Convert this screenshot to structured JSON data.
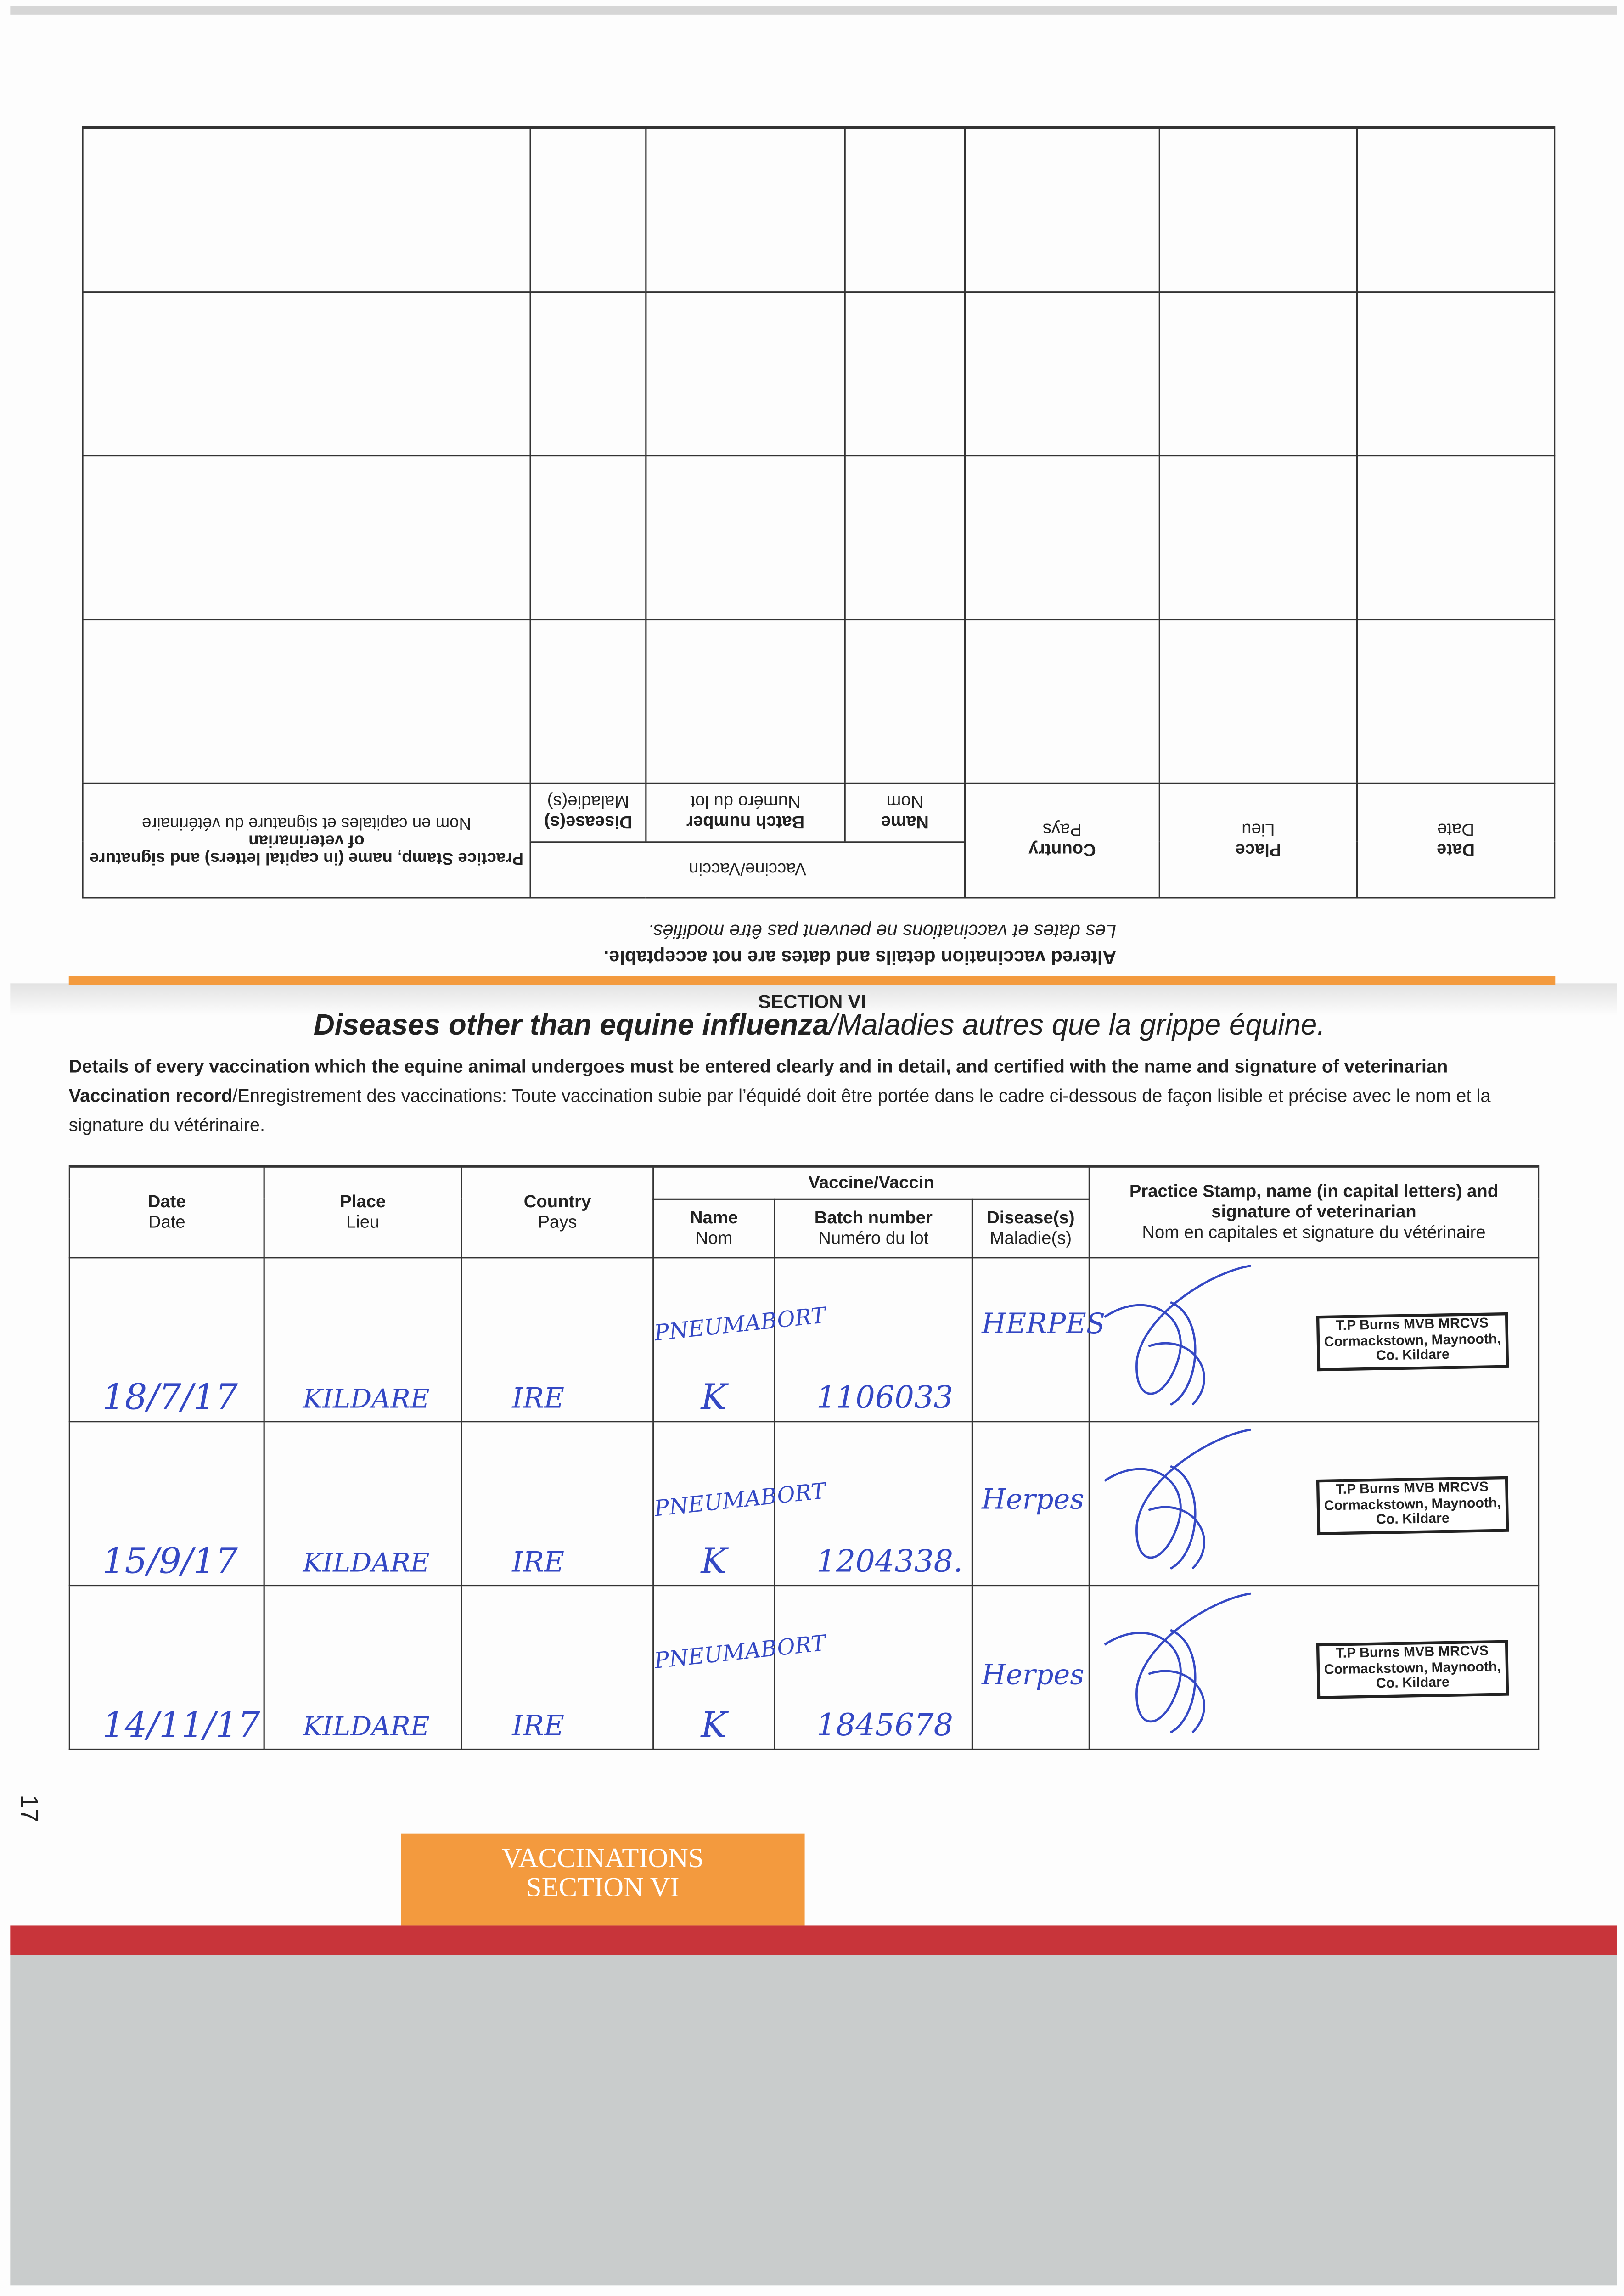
{
  "inverted_section": {
    "warning": "Altered vaccination details and dates are not acceptable.",
    "warning_fr": "Les dates et vaccinations ne peuvent pas être modifiés.",
    "row_count": 4
  },
  "section": {
    "label": "SECTION VI",
    "title_en": "Diseases other than equine influenza",
    "title_fr": "/Maladies autres que la grippe équine.",
    "intro_bold": "Details of every vaccination which the equine animal undergoes must be entered clearly and in detail, and certified with the name and signature of veterinarian",
    "intro_record_bold": "Vaccination record",
    "intro_fr": "/Enregistrement des vaccinations: Toute vaccination subie par l’équidé doit être portée dans le cadre ci-dessous de façon lisible et précise avec le nom et la signature du vétérinaire."
  },
  "table": {
    "headers": {
      "date": "Date",
      "date_fr": "Date",
      "place": "Place",
      "place_fr": "Lieu",
      "country": "Country",
      "country_fr": "Pays",
      "vaccine": "Vaccine/Vaccin",
      "name": "Name",
      "name_fr": "Nom",
      "batch": "Batch number",
      "batch_fr": "Numéro du lot",
      "disease": "Disease(s)",
      "disease_fr": "Maladie(s)",
      "stamp": "Practice Stamp, name (in capital letters) and signature of veterinarian",
      "stamp_fr": "Nom en capitales et signature du vétérinaire"
    },
    "rows": [
      {
        "date": "18/7/17",
        "place": "KILDARE",
        "country": "IRE",
        "name_line1": "PNEUMABORT",
        "name_line2": "K",
        "batch": "1106033",
        "disease": "HERPES",
        "stamp": [
          "T.P Burns MVB MRCVS",
          "Cormackstown, Maynooth,",
          "Co. Kildare"
        ]
      },
      {
        "date": "15/9/17",
        "place": "KILDARE",
        "country": "IRE",
        "name_line1": "PNEUMABORT",
        "name_line2": "K",
        "batch": "1204338.",
        "disease": "Herpes",
        "stamp": [
          "T.P Burns MVB MRCVS",
          "Cormackstown, Maynooth,",
          "Co. Kildare"
        ]
      },
      {
        "date": "14/11/17",
        "place": "KILDARE",
        "country": "IRE",
        "name_line1": "PNEUMABORT",
        "name_line2": "K",
        "batch": "1845678",
        "disease": "Herpes",
        "stamp": [
          "T.P Burns MVB MRCVS",
          "Cormackstown, Maynooth,",
          "Co. Kildare"
        ]
      }
    ]
  },
  "page_number": "17",
  "tab": {
    "line1": "VACCINATIONS",
    "line2": "SECTION VI"
  },
  "colors": {
    "orange": "#f39a3e",
    "red_band": "#c8343a",
    "ink": "#3448c4",
    "backdrop": "#c9cccc"
  }
}
